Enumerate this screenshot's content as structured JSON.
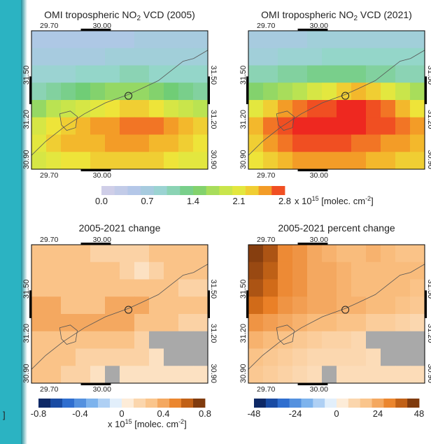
{
  "page": {
    "edge_fragment": "]",
    "accent_color": "#2bb3c2"
  },
  "chart_data": [
    {
      "type": "heatmap",
      "title_prefix": "OMI tropospheric NO",
      "title_sub": "2",
      "title_suffix": " VCD (2005)",
      "x_ticks": [
        "29.70",
        "30.00"
      ],
      "y_ticks": [
        "31.50",
        "31.20",
        "30.90"
      ],
      "colormap": "no2",
      "vmin": 0.0,
      "vmax": 2.8,
      "values": [
        [
          0.6,
          0.6,
          0.6,
          0.6,
          0.6,
          0.6,
          0.6,
          0.7,
          0.7,
          0.7,
          0.7,
          0.7
        ],
        [
          0.7,
          0.7,
          0.7,
          0.7,
          0.7,
          0.8,
          0.8,
          0.8,
          0.8,
          0.8,
          0.8,
          0.8
        ],
        [
          0.9,
          0.9,
          0.9,
          1.0,
          1.0,
          1.0,
          1.1,
          1.1,
          1.0,
          1.0,
          1.0,
          1.0
        ],
        [
          1.1,
          1.2,
          1.3,
          1.4,
          1.5,
          1.6,
          1.6,
          1.6,
          1.5,
          1.4,
          1.3,
          1.2
        ],
        [
          1.6,
          1.8,
          1.9,
          2.0,
          2.1,
          2.2,
          2.3,
          2.3,
          2.2,
          2.0,
          1.9,
          1.8
        ],
        [
          2.0,
          2.2,
          2.3,
          2.4,
          2.5,
          2.5,
          2.6,
          2.6,
          2.6,
          2.5,
          2.4,
          2.3
        ],
        [
          2.1,
          2.3,
          2.4,
          2.4,
          2.4,
          2.5,
          2.5,
          2.5,
          2.4,
          2.4,
          2.3,
          2.2
        ],
        [
          2.0,
          2.1,
          2.2,
          2.2,
          2.3,
          2.3,
          2.3,
          2.3,
          2.3,
          2.2,
          2.1,
          2.1
        ]
      ]
    },
    {
      "type": "heatmap",
      "title_prefix": "OMI tropospheric NO",
      "title_sub": "2",
      "title_suffix": " VCD (2021)",
      "x_ticks": [
        "29.70",
        "30.00"
      ],
      "y_ticks": [
        "31.50",
        "31.20",
        "30.90"
      ],
      "colormap": "no2",
      "vmin": 0.0,
      "vmax": 2.8,
      "values": [
        [
          0.7,
          0.7,
          0.7,
          0.7,
          0.8,
          0.8,
          0.8,
          0.8,
          0.8,
          0.8,
          0.8,
          0.8
        ],
        [
          0.8,
          0.8,
          0.9,
          0.9,
          0.9,
          1.0,
          1.0,
          1.0,
          1.0,
          1.0,
          1.0,
          1.0
        ],
        [
          1.1,
          1.1,
          1.2,
          1.2,
          1.3,
          1.3,
          1.3,
          1.3,
          1.2,
          1.2,
          1.1,
          1.1
        ],
        [
          1.5,
          1.6,
          1.7,
          1.8,
          2.0,
          2.1,
          2.3,
          2.4,
          2.3,
          2.1,
          1.9,
          1.7
        ],
        [
          2.1,
          2.3,
          2.5,
          2.6,
          2.7,
          2.7,
          2.8,
          2.8,
          2.7,
          2.6,
          2.4,
          2.2
        ],
        [
          2.4,
          2.6,
          2.7,
          2.8,
          2.8,
          2.8,
          2.8,
          2.8,
          2.7,
          2.7,
          2.6,
          2.5
        ],
        [
          2.3,
          2.5,
          2.6,
          2.7,
          2.7,
          2.7,
          2.7,
          2.6,
          2.6,
          2.5,
          2.5,
          2.4
        ],
        [
          2.2,
          2.3,
          2.4,
          2.5,
          2.5,
          2.5,
          2.5,
          2.5,
          2.4,
          2.4,
          2.3,
          2.3
        ]
      ]
    },
    {
      "type": "heatmap",
      "title": "2005-2021 change",
      "x_ticks": [
        "29.70",
        "30.00"
      ],
      "y_ticks": [
        "31.50",
        "31.20",
        "30.90"
      ],
      "colormap": "diverging",
      "vmin": -0.8,
      "vmax": 0.8,
      "values": [
        [
          0.3,
          0.3,
          0.3,
          0.3,
          0.2,
          0.2,
          0.2,
          0.2,
          0.3,
          0.3,
          0.3,
          0.3
        ],
        [
          0.3,
          0.3,
          0.3,
          0.3,
          0.3,
          0.3,
          0.2,
          0.1,
          0.2,
          0.3,
          0.3,
          0.3
        ],
        [
          0.3,
          0.3,
          0.3,
          0.3,
          0.3,
          0.3,
          0.3,
          0.3,
          0.3,
          0.3,
          0.2,
          0.2
        ],
        [
          0.4,
          0.4,
          0.3,
          0.3,
          0.3,
          0.4,
          0.4,
          0.4,
          0.3,
          0.3,
          0.3,
          0.3
        ],
        [
          0.4,
          0.4,
          0.4,
          0.4,
          0.4,
          0.4,
          0.4,
          0.3,
          0.3,
          0.3,
          0.2,
          0.2
        ],
        [
          0.3,
          0.3,
          0.3,
          0.3,
          0.3,
          0.3,
          0.3,
          0.2,
          null,
          null,
          null,
          null
        ],
        [
          0.3,
          0.3,
          0.3,
          0.2,
          0.2,
          0.2,
          0.2,
          0.2,
          0.1,
          null,
          null,
          null
        ],
        [
          0.3,
          0.3,
          0.2,
          0.2,
          0.1,
          null,
          0.1,
          0.1,
          0.1,
          0.1,
          0.1,
          0.1
        ]
      ],
      "masked_color": "#a9a9a9"
    },
    {
      "type": "heatmap",
      "title": "2005-2021 percent change",
      "x_ticks": [
        "29.70",
        "30.00"
      ],
      "y_ticks": [
        "31.50",
        "31.20",
        "30.90"
      ],
      "colormap": "diverging",
      "vmin": -48,
      "vmax": 48,
      "values": [
        [
          44,
          40,
          30,
          28,
          24,
          22,
          20,
          20,
          22,
          20,
          18,
          18
        ],
        [
          42,
          38,
          30,
          28,
          24,
          24,
          22,
          20,
          20,
          20,
          20,
          20
        ],
        [
          40,
          36,
          30,
          28,
          24,
          24,
          22,
          20,
          20,
          20,
          20,
          18
        ],
        [
          36,
          32,
          28,
          26,
          24,
          24,
          22,
          22,
          20,
          20,
          18,
          16
        ],
        [
          28,
          26,
          24,
          22,
          20,
          20,
          18,
          18,
          14,
          14,
          12,
          10
        ],
        [
          22,
          20,
          18,
          16,
          14,
          12,
          12,
          10,
          null,
          null,
          null,
          null
        ],
        [
          18,
          16,
          14,
          12,
          10,
          10,
          10,
          10,
          8,
          null,
          null,
          null
        ],
        [
          16,
          14,
          12,
          10,
          8,
          null,
          8,
          8,
          8,
          8,
          8,
          8
        ]
      ],
      "masked_color": "#a9a9a9"
    }
  ],
  "colorbars": {
    "top": {
      "ticks": [
        "0.0",
        "0.7",
        "1.4",
        "2.1",
        "2.8"
      ],
      "unit_prefix": "x 10",
      "unit_exp": "15",
      "unit_suffix": " [molec. cm",
      "unit_exp2": "-2",
      "unit_end": "]"
    },
    "bottom_left": {
      "ticks": [
        "-0.8",
        "-0.4",
        "0",
        "0.4",
        "0.8"
      ],
      "unit_prefix": "x 10",
      "unit_exp": "15",
      "unit_suffix": " [molec. cm",
      "unit_exp2": "-2",
      "unit_end": "]"
    },
    "bottom_right": {
      "ticks": [
        "-48",
        "-24",
        "0",
        "24",
        "48"
      ]
    }
  }
}
